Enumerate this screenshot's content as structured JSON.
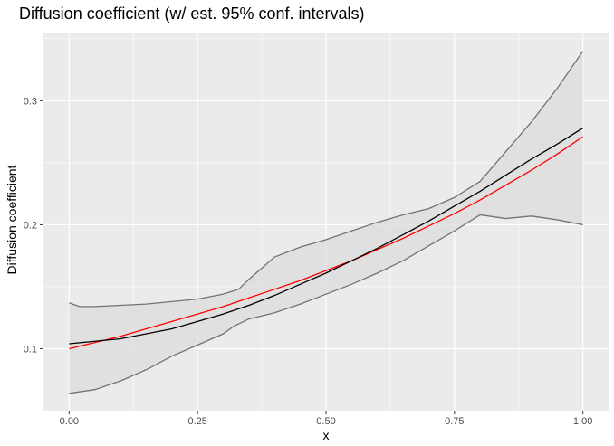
{
  "chart_data": {
    "type": "line",
    "title": "Diffusion coefficient (w/ est. 95% conf. intervals)",
    "xlabel": "x",
    "ylabel": "Diffusion coefficient",
    "xlim": [
      -0.05,
      1.05
    ],
    "ylim": [
      0.05,
      0.355
    ],
    "x_ticks": [
      0.0,
      0.25,
      0.5,
      0.75,
      1.0
    ],
    "x_tick_labels": [
      "0.00",
      "0.25",
      "0.50",
      "0.75",
      "1.00"
    ],
    "y_ticks": [
      0.1,
      0.2,
      0.3
    ],
    "y_tick_labels": [
      "0.1",
      "0.2",
      "0.3"
    ],
    "grid": true,
    "legend": "none",
    "colors": {
      "panel_background": "#ebebeb",
      "grid": "#ffffff",
      "ribbon_fill": "#dcdcdc",
      "ribbon_edge": "#737373",
      "estimate": "#000000",
      "reference": "#ff0000"
    },
    "series": [
      {
        "role": "lower-bound",
        "x": [
          0.0,
          0.05,
          0.1,
          0.15,
          0.2,
          0.25,
          0.3,
          0.32,
          0.35,
          0.4,
          0.45,
          0.5,
          0.55,
          0.6,
          0.65,
          0.7,
          0.75,
          0.8,
          0.85,
          0.9,
          0.95,
          1.0
        ],
        "values": [
          0.064,
          0.067,
          0.074,
          0.083,
          0.094,
          0.103,
          0.112,
          0.118,
          0.124,
          0.129,
          0.136,
          0.144,
          0.152,
          0.161,
          0.171,
          0.183,
          0.195,
          0.208,
          0.205,
          0.207,
          0.204,
          0.2
        ]
      },
      {
        "role": "upper-bound",
        "x": [
          0.0,
          0.02,
          0.05,
          0.1,
          0.15,
          0.2,
          0.25,
          0.3,
          0.33,
          0.35,
          0.4,
          0.45,
          0.5,
          0.55,
          0.6,
          0.65,
          0.7,
          0.75,
          0.8,
          0.85,
          0.9,
          0.95,
          1.0
        ],
        "values": [
          0.137,
          0.134,
          0.134,
          0.135,
          0.136,
          0.138,
          0.14,
          0.144,
          0.148,
          0.156,
          0.174,
          0.182,
          0.188,
          0.195,
          0.202,
          0.208,
          0.213,
          0.222,
          0.235,
          0.259,
          0.283,
          0.31,
          0.34
        ]
      },
      {
        "role": "estimate",
        "x": [
          0.0,
          0.05,
          0.1,
          0.15,
          0.2,
          0.25,
          0.3,
          0.35,
          0.4,
          0.45,
          0.5,
          0.55,
          0.6,
          0.65,
          0.7,
          0.75,
          0.8,
          0.85,
          0.9,
          0.95,
          1.0
        ],
        "values": [
          0.104,
          0.106,
          0.108,
          0.112,
          0.116,
          0.122,
          0.128,
          0.135,
          0.143,
          0.152,
          0.161,
          0.171,
          0.181,
          0.192,
          0.203,
          0.215,
          0.227,
          0.24,
          0.253,
          0.265,
          0.278
        ]
      },
      {
        "role": "reference",
        "x": [
          0.0,
          0.05,
          0.1,
          0.15,
          0.2,
          0.25,
          0.3,
          0.35,
          0.4,
          0.45,
          0.5,
          0.55,
          0.6,
          0.65,
          0.7,
          0.75,
          0.8,
          0.85,
          0.9,
          0.95,
          1.0
        ],
        "values": [
          0.1,
          0.105,
          0.11,
          0.116,
          0.122,
          0.128,
          0.134,
          0.141,
          0.148,
          0.155,
          0.163,
          0.171,
          0.18,
          0.189,
          0.199,
          0.209,
          0.22,
          0.232,
          0.244,
          0.257,
          0.271
        ]
      }
    ]
  }
}
